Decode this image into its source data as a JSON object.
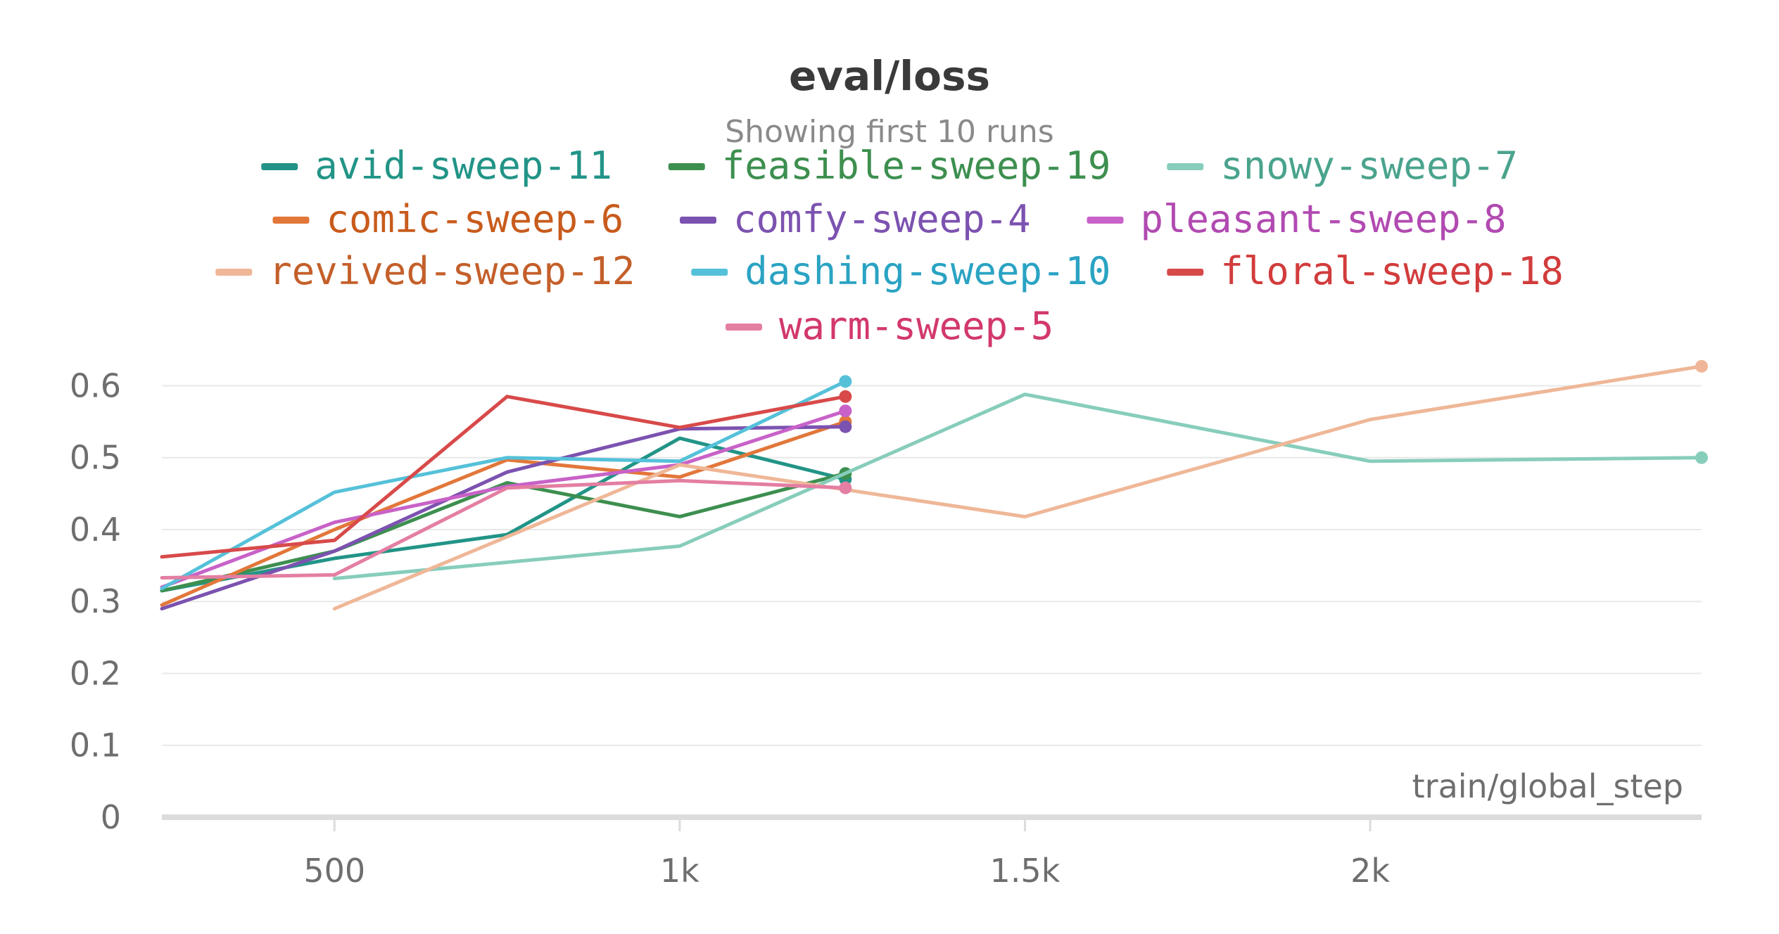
{
  "chart_data": {
    "type": "line",
    "title": "eval/loss",
    "subtitle": "Showing first 10 runs",
    "xlabel": "train/global_step",
    "ylabel": "",
    "xlim": [
      250,
      2480
    ],
    "ylim": [
      0,
      0.62
    ],
    "xticks": [
      500,
      1000,
      1500,
      2000
    ],
    "xtick_labels": [
      "500",
      "1k",
      "1.5k",
      "2k"
    ],
    "yticks": [
      0,
      0.1,
      0.2,
      0.3,
      0.4,
      0.5,
      0.6
    ],
    "ytick_labels": [
      "0",
      "0.1",
      "0.2",
      "0.3",
      "0.4",
      "0.5",
      "0.6"
    ],
    "grid": true,
    "legend_position": "top-center",
    "series": [
      {
        "name": "avid-sweep-11",
        "color": "#229487",
        "text_color": "#229487",
        "x": [
          250,
          500,
          750,
          1000,
          1240
        ],
        "y": [
          0.315,
          0.36,
          0.393,
          0.527,
          0.47
        ]
      },
      {
        "name": "feasible-sweep-19",
        "color": "#3d8f4f",
        "text_color": "#3d8f4f",
        "x": [
          250,
          500,
          750,
          1000,
          1240
        ],
        "y": [
          0.315,
          0.37,
          0.465,
          0.418,
          0.478
        ]
      },
      {
        "name": "snowy-sweep-7",
        "color": "#87cdbb",
        "text_color": "#4aa38d",
        "x": [
          500,
          1000,
          1500,
          2000,
          2480
        ],
        "y": [
          0.332,
          0.377,
          0.588,
          0.495,
          0.5
        ]
      },
      {
        "name": "comic-sweep-6",
        "color": "#e2773a",
        "text_color": "#c85b1c",
        "x": [
          250,
          500,
          750,
          1000,
          1240
        ],
        "y": [
          0.295,
          0.4,
          0.497,
          0.473,
          0.55
        ]
      },
      {
        "name": "comfy-sweep-4",
        "color": "#7c52b0",
        "text_color": "#7c52b0",
        "x": [
          250,
          500,
          750,
          1000,
          1240
        ],
        "y": [
          0.29,
          0.37,
          0.48,
          0.54,
          0.543
        ]
      },
      {
        "name": "pleasant-sweep-8",
        "color": "#c862c8",
        "text_color": "#b14ab1",
        "x": [
          250,
          500,
          750,
          1000,
          1240
        ],
        "y": [
          0.32,
          0.41,
          0.46,
          0.49,
          0.565
        ]
      },
      {
        "name": "revived-sweep-12",
        "color": "#efb797",
        "text_color": "#c45f2a",
        "x": [
          500,
          1000,
          1500,
          2000,
          2480
        ],
        "y": [
          0.29,
          0.49,
          0.418,
          0.553,
          0.627
        ]
      },
      {
        "name": "dashing-sweep-10",
        "color": "#55c1d9",
        "text_color": "#2aa3c3",
        "x": [
          250,
          500,
          750,
          1000,
          1240
        ],
        "y": [
          0.318,
          0.452,
          0.5,
          0.495,
          0.606
        ]
      },
      {
        "name": "floral-sweep-18",
        "color": "#d84a4a",
        "text_color": "#d23c3c",
        "x": [
          250,
          500,
          750,
          1000,
          1240
        ],
        "y": [
          0.362,
          0.385,
          0.585,
          0.542,
          0.585
        ]
      },
      {
        "name": "warm-sweep-5",
        "color": "#e47ea3",
        "text_color": "#d2386b",
        "x": [
          250,
          500,
          750,
          1000,
          1240
        ],
        "y": [
          0.333,
          0.337,
          0.458,
          0.468,
          0.458
        ]
      }
    ]
  }
}
